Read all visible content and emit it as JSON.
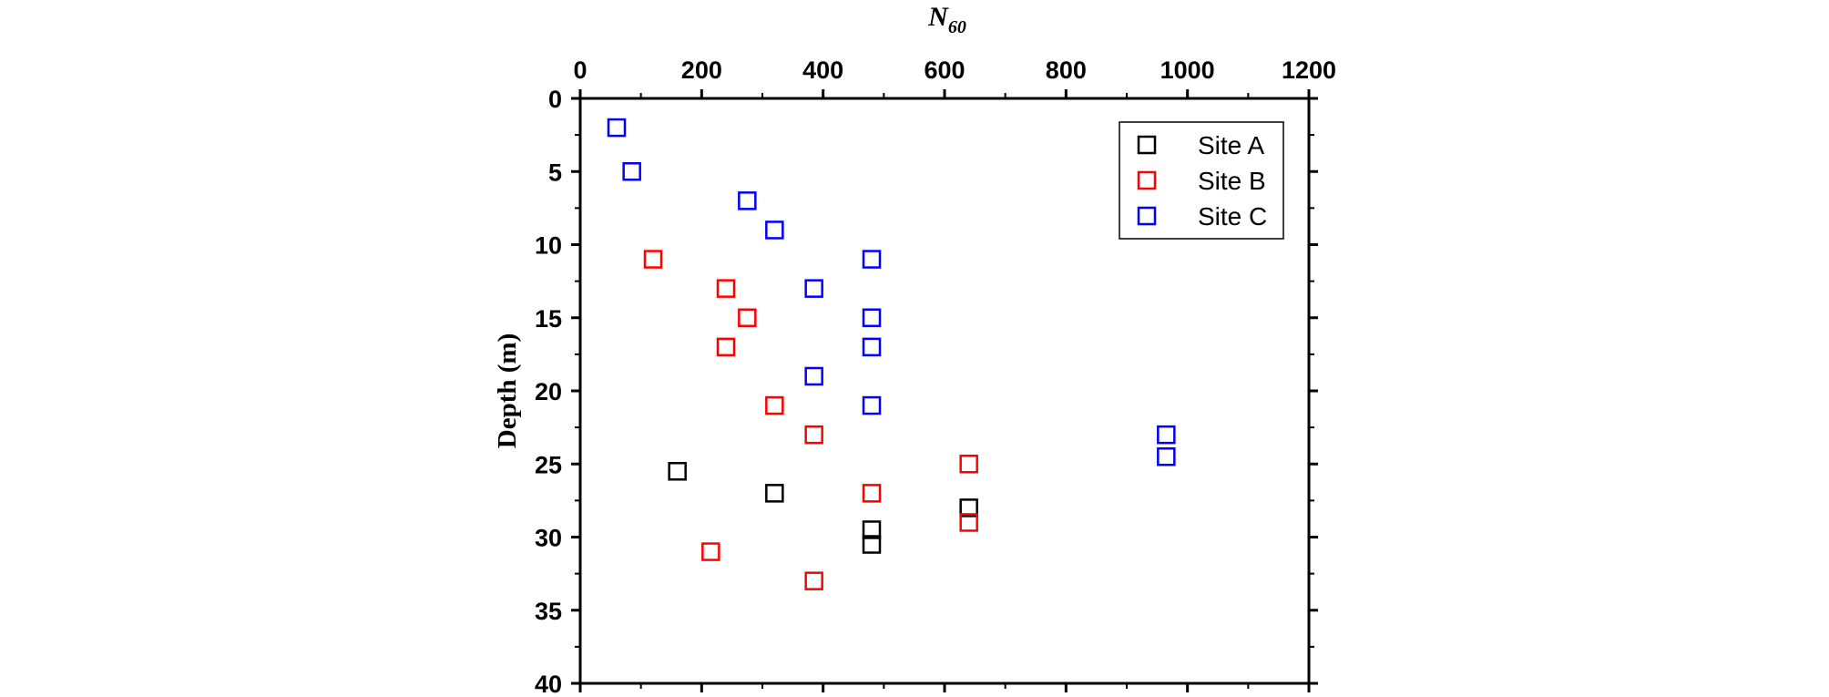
{
  "chart_data": {
    "type": "scatter",
    "xlabel": "N",
    "xlabel_subscript": "60",
    "ylabel": "Depth (m)",
    "xlim": [
      0,
      1200
    ],
    "ylim": [
      0,
      40
    ],
    "y_inverted": true,
    "x_axis_position": "top",
    "x_ticks": [
      "0",
      "200",
      "400",
      "600",
      "800",
      "1000",
      "1200"
    ],
    "y_ticks": [
      "0",
      "5",
      "10",
      "15",
      "20",
      "25",
      "30",
      "35",
      "40"
    ],
    "grid": false,
    "legend_position": "top-right",
    "marker": "open-square",
    "series": [
      {
        "name": "Site A",
        "color": "#000000",
        "points": [
          {
            "x": 160,
            "y": 25.5
          },
          {
            "x": 320,
            "y": 27
          },
          {
            "x": 480,
            "y": 29.5
          },
          {
            "x": 480,
            "y": 30.5
          },
          {
            "x": 640,
            "y": 28
          }
        ]
      },
      {
        "name": "Site B",
        "color": "#ff0000",
        "points": [
          {
            "x": 120,
            "y": 11
          },
          {
            "x": 240,
            "y": 13
          },
          {
            "x": 275,
            "y": 15
          },
          {
            "x": 240,
            "y": 17
          },
          {
            "x": 320,
            "y": 21
          },
          {
            "x": 385,
            "y": 23
          },
          {
            "x": 480,
            "y": 27
          },
          {
            "x": 640,
            "y": 25
          },
          {
            "x": 640,
            "y": 29
          },
          {
            "x": 215,
            "y": 31
          },
          {
            "x": 385,
            "y": 33
          }
        ]
      },
      {
        "name": "Site C",
        "color": "#0000ff",
        "points": [
          {
            "x": 60,
            "y": 2
          },
          {
            "x": 85,
            "y": 5
          },
          {
            "x": 275,
            "y": 7
          },
          {
            "x": 320,
            "y": 9
          },
          {
            "x": 480,
            "y": 11
          },
          {
            "x": 385,
            "y": 13
          },
          {
            "x": 480,
            "y": 15
          },
          {
            "x": 480,
            "y": 17
          },
          {
            "x": 385,
            "y": 19
          },
          {
            "x": 480,
            "y": 21
          },
          {
            "x": 965,
            "y": 23
          },
          {
            "x": 965,
            "y": 24.5
          }
        ]
      }
    ]
  }
}
